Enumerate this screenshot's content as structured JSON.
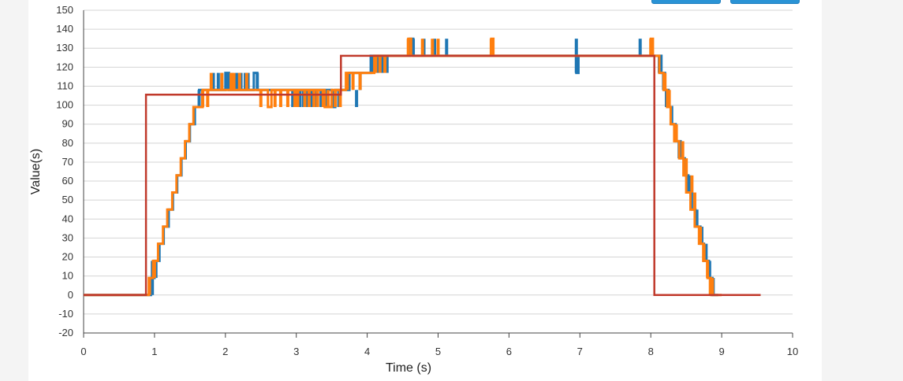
{
  "chart_data": {
    "type": "line",
    "xlabel": "Time (s)",
    "ylabel": "Value(s)",
    "xlim": [
      0,
      10
    ],
    "ylim": [
      -20,
      150
    ],
    "x_ticks": [
      "0",
      "1",
      "2",
      "3",
      "4",
      "5",
      "6",
      "7",
      "8",
      "9",
      "10"
    ],
    "y_ticks": [
      "150",
      "140",
      "130",
      "120",
      "110",
      "100",
      "90",
      "80",
      "70",
      "60",
      "50",
      "40",
      "30",
      "20",
      "10",
      "0",
      "-10",
      "-20"
    ],
    "grid": "horizontal",
    "series": [
      {
        "color": "#c0392b",
        "points": [
          [
            0,
            0
          ],
          [
            0.88,
            0
          ],
          [
            0.88,
            105.5
          ],
          [
            3.63,
            105.5
          ],
          [
            3.63,
            126
          ],
          [
            8.05,
            126
          ],
          [
            8.05,
            0
          ],
          [
            9.55,
            0
          ]
        ]
      },
      {
        "color": "#1f77b4",
        "points": [
          [
            0,
            0
          ],
          [
            0.95,
            0
          ],
          [
            0.95,
            9
          ],
          [
            1.0,
            9
          ],
          [
            1.0,
            18
          ],
          [
            1.07,
            18
          ],
          [
            1.07,
            27
          ],
          [
            1.13,
            27
          ],
          [
            1.13,
            36
          ],
          [
            1.2,
            36
          ],
          [
            1.2,
            45
          ],
          [
            1.26,
            45
          ],
          [
            1.26,
            54
          ],
          [
            1.32,
            54
          ],
          [
            1.32,
            63
          ],
          [
            1.38,
            63
          ],
          [
            1.38,
            72
          ],
          [
            1.44,
            72
          ],
          [
            1.44,
            81
          ],
          [
            1.5,
            81
          ],
          [
            1.5,
            90
          ],
          [
            1.57,
            90
          ],
          [
            1.57,
            99
          ],
          [
            1.63,
            99
          ],
          [
            1.63,
            108
          ],
          [
            2.0,
            108
          ],
          [
            2.0,
            117
          ],
          [
            2.05,
            117
          ],
          [
            2.05,
            108
          ],
          [
            2.4,
            108
          ],
          [
            2.4,
            117
          ],
          [
            2.45,
            117
          ],
          [
            2.45,
            108
          ],
          [
            3.5,
            108
          ],
          [
            3.5,
            99
          ],
          [
            3.55,
            99
          ],
          [
            3.55,
            108
          ],
          [
            3.75,
            108
          ],
          [
            3.75,
            117
          ],
          [
            4.05,
            117
          ],
          [
            4.05,
            126
          ],
          [
            4.6,
            126
          ],
          [
            4.6,
            135
          ],
          [
            4.65,
            135
          ],
          [
            4.65,
            126
          ],
          [
            6.95,
            126
          ],
          [
            6.95,
            117
          ],
          [
            6.98,
            117
          ],
          [
            6.98,
            126
          ],
          [
            8.15,
            126
          ],
          [
            8.15,
            117
          ],
          [
            8.2,
            117
          ],
          [
            8.2,
            108
          ],
          [
            8.25,
            108
          ],
          [
            8.25,
            99
          ],
          [
            8.3,
            99
          ],
          [
            8.3,
            90
          ],
          [
            8.35,
            90
          ],
          [
            8.35,
            81
          ],
          [
            8.42,
            81
          ],
          [
            8.42,
            72
          ],
          [
            8.48,
            72
          ],
          [
            8.48,
            63
          ],
          [
            8.53,
            63
          ],
          [
            8.53,
            54
          ],
          [
            8.58,
            54
          ],
          [
            8.58,
            45
          ],
          [
            8.63,
            45
          ],
          [
            8.63,
            36
          ],
          [
            8.7,
            36
          ],
          [
            8.7,
            27
          ],
          [
            8.75,
            27
          ],
          [
            8.75,
            18
          ],
          [
            8.82,
            18
          ],
          [
            8.82,
            9
          ],
          [
            8.87,
            9
          ],
          [
            8.87,
            0
          ],
          [
            8.95,
            0
          ]
        ]
      },
      {
        "color": "#ff7f0e",
        "points": [
          [
            0,
            0
          ],
          [
            0.92,
            0
          ],
          [
            0.92,
            9
          ],
          [
            0.98,
            9
          ],
          [
            0.98,
            18
          ],
          [
            1.05,
            18
          ],
          [
            1.05,
            27
          ],
          [
            1.12,
            27
          ],
          [
            1.12,
            36
          ],
          [
            1.18,
            36
          ],
          [
            1.18,
            45
          ],
          [
            1.25,
            45
          ],
          [
            1.25,
            54
          ],
          [
            1.31,
            54
          ],
          [
            1.31,
            63
          ],
          [
            1.37,
            63
          ],
          [
            1.37,
            72
          ],
          [
            1.43,
            72
          ],
          [
            1.43,
            81
          ],
          [
            1.49,
            81
          ],
          [
            1.49,
            90
          ],
          [
            1.55,
            90
          ],
          [
            1.55,
            99
          ],
          [
            1.68,
            99
          ],
          [
            1.68,
            108
          ],
          [
            2.6,
            108
          ],
          [
            2.6,
            99
          ],
          [
            2.65,
            99
          ],
          [
            2.65,
            108
          ],
          [
            3.4,
            108
          ],
          [
            3.4,
            99
          ],
          [
            3.5,
            99
          ],
          [
            3.5,
            108
          ],
          [
            3.7,
            108
          ],
          [
            3.7,
            117
          ],
          [
            4.1,
            117
          ],
          [
            4.1,
            126
          ],
          [
            4.58,
            126
          ],
          [
            4.58,
            135
          ],
          [
            4.62,
            135
          ],
          [
            4.62,
            126
          ],
          [
            5.75,
            126
          ],
          [
            5.75,
            135
          ],
          [
            5.78,
            135
          ],
          [
            5.78,
            126
          ],
          [
            8.0,
            126
          ],
          [
            8.0,
            135
          ],
          [
            8.03,
            135
          ],
          [
            8.03,
            126
          ],
          [
            8.12,
            126
          ],
          [
            8.12,
            117
          ],
          [
            8.18,
            117
          ],
          [
            8.18,
            108
          ],
          [
            8.23,
            108
          ],
          [
            8.23,
            99
          ],
          [
            8.28,
            99
          ],
          [
            8.28,
            90
          ],
          [
            8.33,
            90
          ],
          [
            8.33,
            81
          ],
          [
            8.4,
            81
          ],
          [
            8.4,
            72
          ],
          [
            8.46,
            72
          ],
          [
            8.46,
            63
          ],
          [
            8.5,
            63
          ],
          [
            8.5,
            54
          ],
          [
            8.56,
            54
          ],
          [
            8.56,
            45
          ],
          [
            8.62,
            45
          ],
          [
            8.62,
            36
          ],
          [
            8.68,
            36
          ],
          [
            8.68,
            27
          ],
          [
            8.74,
            27
          ],
          [
            8.74,
            18
          ],
          [
            8.8,
            18
          ],
          [
            8.8,
            9
          ],
          [
            8.85,
            9
          ],
          [
            8.85,
            0
          ],
          [
            9.0,
            0
          ]
        ]
      }
    ],
    "blue_spikes": [
      [
        0.97,
        0,
        18
      ],
      [
        1.02,
        9,
        18
      ],
      [
        1.63,
        99,
        108
      ],
      [
        1.83,
        108,
        117
      ],
      [
        1.9,
        108,
        117
      ],
      [
        1.95,
        108,
        117
      ],
      [
        2.02,
        108,
        117
      ],
      [
        2.1,
        108,
        117
      ],
      [
        2.16,
        108,
        117
      ],
      [
        2.22,
        108,
        117
      ],
      [
        2.28,
        108,
        117
      ],
      [
        2.32,
        108,
        117
      ],
      [
        2.45,
        108,
        117
      ],
      [
        2.95,
        99,
        108
      ],
      [
        3.05,
        99,
        108
      ],
      [
        3.1,
        99,
        108
      ],
      [
        3.15,
        99,
        108
      ],
      [
        3.22,
        99,
        108
      ],
      [
        3.28,
        99,
        108
      ],
      [
        3.35,
        99,
        108
      ],
      [
        3.42,
        99,
        108
      ],
      [
        3.52,
        99,
        108
      ],
      [
        3.6,
        99,
        108
      ],
      [
        3.85,
        99,
        108
      ],
      [
        3.9,
        108,
        117
      ],
      [
        4.08,
        117,
        126
      ],
      [
        4.15,
        117,
        126
      ],
      [
        4.22,
        117,
        126
      ],
      [
        4.28,
        117,
        126
      ],
      [
        4.65,
        126,
        135
      ],
      [
        4.8,
        126,
        135
      ],
      [
        4.95,
        126,
        135
      ],
      [
        5.12,
        126,
        135
      ],
      [
        6.95,
        117,
        135
      ],
      [
        7.85,
        126,
        135
      ],
      [
        8.12,
        117,
        126
      ],
      [
        8.18,
        108,
        117
      ],
      [
        8.22,
        99,
        108
      ],
      [
        8.34,
        81,
        90
      ],
      [
        8.4,
        72,
        81
      ],
      [
        8.55,
        54,
        63
      ],
      [
        8.65,
        36,
        45
      ],
      [
        8.72,
        27,
        36
      ],
      [
        8.78,
        18,
        27
      ],
      [
        8.83,
        9,
        18
      ],
      [
        8.88,
        0,
        9
      ]
    ],
    "orange_spikes": [
      [
        0.93,
        0,
        9
      ],
      [
        1.0,
        9,
        18
      ],
      [
        1.68,
        99,
        108
      ],
      [
        1.75,
        99,
        108
      ],
      [
        1.8,
        108,
        117
      ],
      [
        1.95,
        108,
        117
      ],
      [
        2.08,
        108,
        117
      ],
      [
        2.12,
        108,
        117
      ],
      [
        2.2,
        108,
        117
      ],
      [
        2.3,
        108,
        117
      ],
      [
        2.5,
        99,
        108
      ],
      [
        2.7,
        99,
        108
      ],
      [
        2.78,
        99,
        108
      ],
      [
        2.88,
        99,
        108
      ],
      [
        2.98,
        99,
        108
      ],
      [
        3.02,
        99,
        108
      ],
      [
        3.12,
        99,
        108
      ],
      [
        3.18,
        99,
        108
      ],
      [
        3.25,
        99,
        108
      ],
      [
        3.3,
        99,
        108
      ],
      [
        3.38,
        99,
        108
      ],
      [
        3.45,
        99,
        108
      ],
      [
        3.55,
        99,
        108
      ],
      [
        3.62,
        99,
        108
      ],
      [
        3.72,
        108,
        117
      ],
      [
        3.8,
        108,
        117
      ],
      [
        3.9,
        108,
        117
      ],
      [
        4.12,
        117,
        126
      ],
      [
        4.18,
        117,
        126
      ],
      [
        4.25,
        117,
        126
      ],
      [
        4.58,
        126,
        135
      ],
      [
        4.78,
        126,
        135
      ],
      [
        4.92,
        126,
        135
      ],
      [
        5.0,
        126,
        135
      ],
      [
        5.75,
        126,
        135
      ],
      [
        8.0,
        126,
        135
      ],
      [
        8.2,
        108,
        117
      ],
      [
        8.26,
        99,
        108
      ],
      [
        8.36,
        81,
        90
      ],
      [
        8.45,
        72,
        81
      ],
      [
        8.5,
        63,
        72
      ],
      [
        8.58,
        54,
        63
      ],
      [
        8.62,
        45,
        54
      ],
      [
        8.7,
        27,
        36
      ],
      [
        8.75,
        18,
        27
      ],
      [
        8.8,
        9,
        18
      ],
      [
        8.84,
        0,
        9
      ],
      [
        8.87,
        0,
        9
      ]
    ]
  }
}
